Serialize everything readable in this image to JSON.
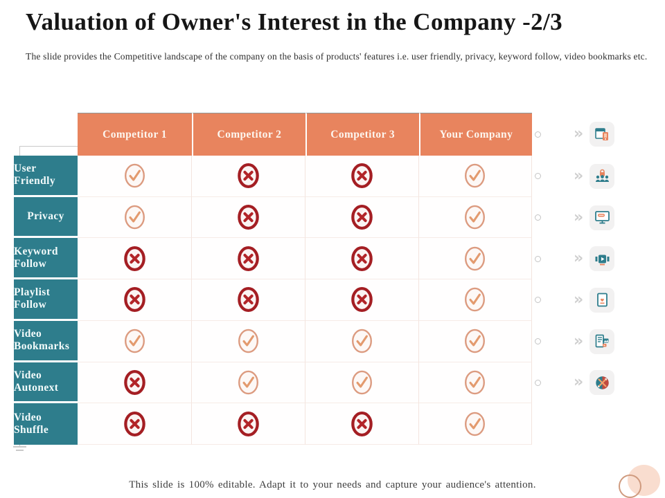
{
  "slide": {
    "title": "Valuation of Owner's Interest in the Company -2/3",
    "subtitle": "The slide provides the Competitive landscape of the company on the basis of products' features i.e. user friendly, privacy, keyword follow, video bookmarks etc.",
    "footer": "This slide is 100% editable. Adapt it to your needs and capture your audience's attention."
  },
  "table": {
    "columns": [
      "Competitor 1",
      "Competitor 2",
      "Competitor 3",
      "Your Company"
    ],
    "rows": [
      {
        "label": "User Friendly",
        "icon": "user-friendly-icon",
        "values": [
          "check",
          "cross",
          "cross",
          "check"
        ]
      },
      {
        "label": "Privacy",
        "icon": "privacy-icon",
        "values": [
          "check",
          "cross",
          "cross",
          "check"
        ]
      },
      {
        "label": "Keyword Follow",
        "icon": "keyword-follow-icon",
        "values": [
          "cross",
          "cross",
          "cross",
          "check"
        ]
      },
      {
        "label": "Playlist Follow",
        "icon": "playlist-follow-icon",
        "values": [
          "cross",
          "cross",
          "cross",
          "check"
        ]
      },
      {
        "label": "Video Bookmarks",
        "icon": "video-bookmarks-icon",
        "values": [
          "check",
          "check",
          "check",
          "check"
        ]
      },
      {
        "label": "Video Autonext",
        "icon": "video-autonext-icon",
        "values": [
          "cross",
          "check",
          "check",
          "check"
        ]
      },
      {
        "label": "Video Shuffle",
        "icon": "video-shuffle-icon",
        "values": [
          "cross",
          "cross",
          "cross",
          "check"
        ]
      }
    ],
    "mark_legend": {
      "check": "available",
      "cross": "not-available"
    }
  },
  "colors": {
    "header_bg": "#E8845E",
    "row_header_bg": "#2E7D8C",
    "check_stroke": "#DC9B80",
    "check_mark": "#E39A6E",
    "cross_ring": "#A41E23",
    "cross_mark": "#B22428"
  }
}
